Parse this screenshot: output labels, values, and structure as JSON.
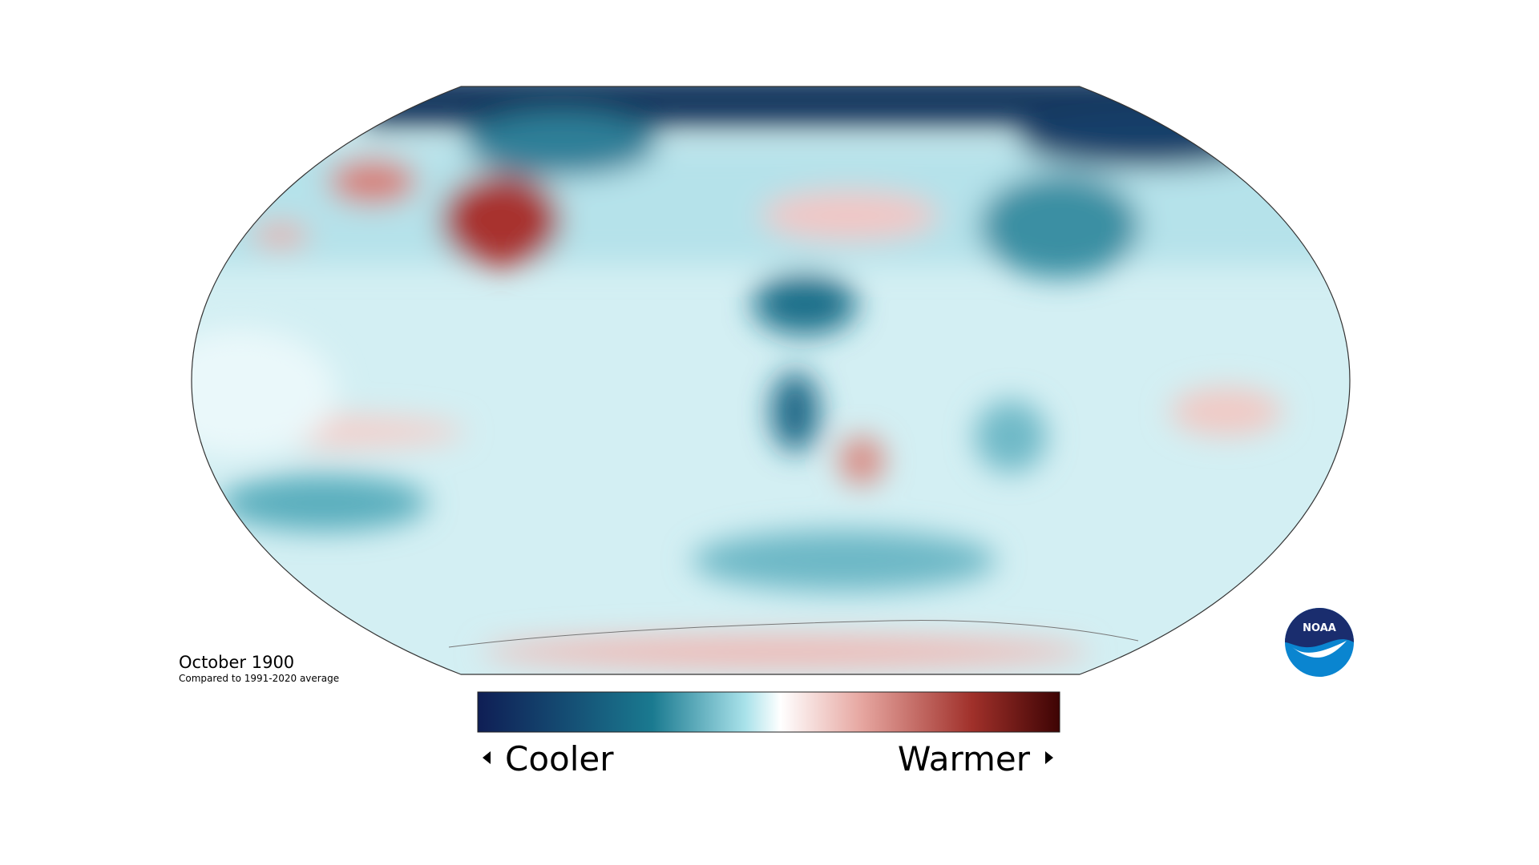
{
  "map": {
    "date": "October 1900",
    "subtitle": "Compared to 1991-2020 average"
  },
  "legend": {
    "low": "Cooler",
    "high": "Warmer"
  },
  "logo": {
    "text": "NOAA"
  }
}
